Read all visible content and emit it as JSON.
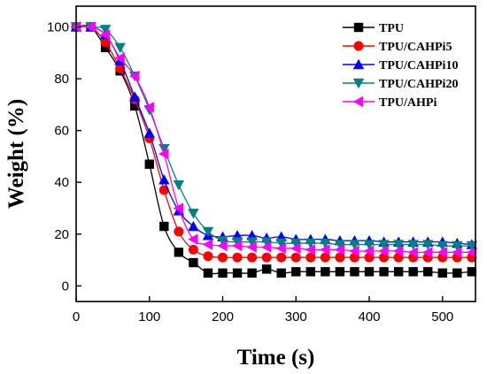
{
  "chart_data": {
    "type": "line",
    "title": "",
    "xlabel": "Time (s)",
    "ylabel": "Weight (%)",
    "xlim": [
      0,
      545
    ],
    "ylim": [
      -6,
      108
    ],
    "xticks": [
      0,
      100,
      200,
      300,
      400,
      500
    ],
    "yticks": [
      0,
      20,
      40,
      60,
      80,
      100
    ],
    "xtick_labels": [
      "0",
      "100",
      "200",
      "300",
      "400",
      "500"
    ],
    "ytick_labels": [
      "0",
      "20",
      "40",
      "60",
      "80",
      "100"
    ],
    "grid": false,
    "legend_position": "top-right",
    "x": [
      0,
      20,
      40,
      60,
      80,
      100,
      120,
      140,
      160,
      180,
      200,
      220,
      240,
      260,
      280,
      300,
      320,
      340,
      360,
      380,
      400,
      420,
      440,
      460,
      480,
      500,
      520,
      540
    ],
    "series": [
      {
        "name": "TPU",
        "color": "#000000",
        "marker": "square",
        "values": [
          100,
          100,
          92,
          83,
          69.5,
          47,
          23,
          13,
          9,
          5,
          5,
          5,
          5,
          6.5,
          5,
          5.5,
          5.5,
          5.5,
          5.5,
          5.5,
          5.5,
          5.5,
          5.5,
          5.5,
          5.5,
          5,
          5,
          5.5
        ]
      },
      {
        "name": "TPU/CAHPi5",
        "color": "#ff0000",
        "marker": "circle",
        "values": [
          100,
          100,
          94,
          84,
          72,
          57,
          37,
          21,
          14,
          11.5,
          11,
          11,
          11,
          11,
          11,
          11,
          11,
          11,
          11,
          11,
          11,
          11,
          11,
          11,
          11,
          11,
          11,
          11
        ]
      },
      {
        "name": "TPU/CAHPi10",
        "color": "#0000ff",
        "marker": "triangle-up",
        "values": [
          100,
          100,
          97,
          87,
          73,
          59,
          41,
          29,
          23,
          19.5,
          19,
          19.5,
          19.5,
          18.5,
          19,
          18,
          18,
          18,
          17.5,
          17.5,
          17.5,
          17,
          17,
          17,
          17,
          17,
          16.5,
          16
        ]
      },
      {
        "name": "TPU/CAHPi20",
        "color": "#008080",
        "marker": "triangle-down",
        "values": [
          100,
          100,
          99,
          92,
          81,
          68,
          53,
          39,
          28,
          21,
          17.5,
          17,
          17,
          17,
          16.5,
          16.5,
          16.5,
          16.5,
          16,
          16,
          16,
          16,
          16,
          16,
          16,
          15.5,
          15.5,
          15.5
        ]
      },
      {
        "name": "TPU/AHPi",
        "color": "#ff00ff",
        "marker": "triangle-left",
        "values": [
          100,
          100,
          97,
          88,
          81,
          69,
          51,
          30,
          18,
          16,
          15.5,
          15.5,
          15,
          15,
          14.5,
          14.5,
          14,
          14,
          14,
          13.5,
          13.5,
          13.5,
          13.5,
          13,
          13,
          13,
          13,
          13
        ]
      }
    ]
  }
}
